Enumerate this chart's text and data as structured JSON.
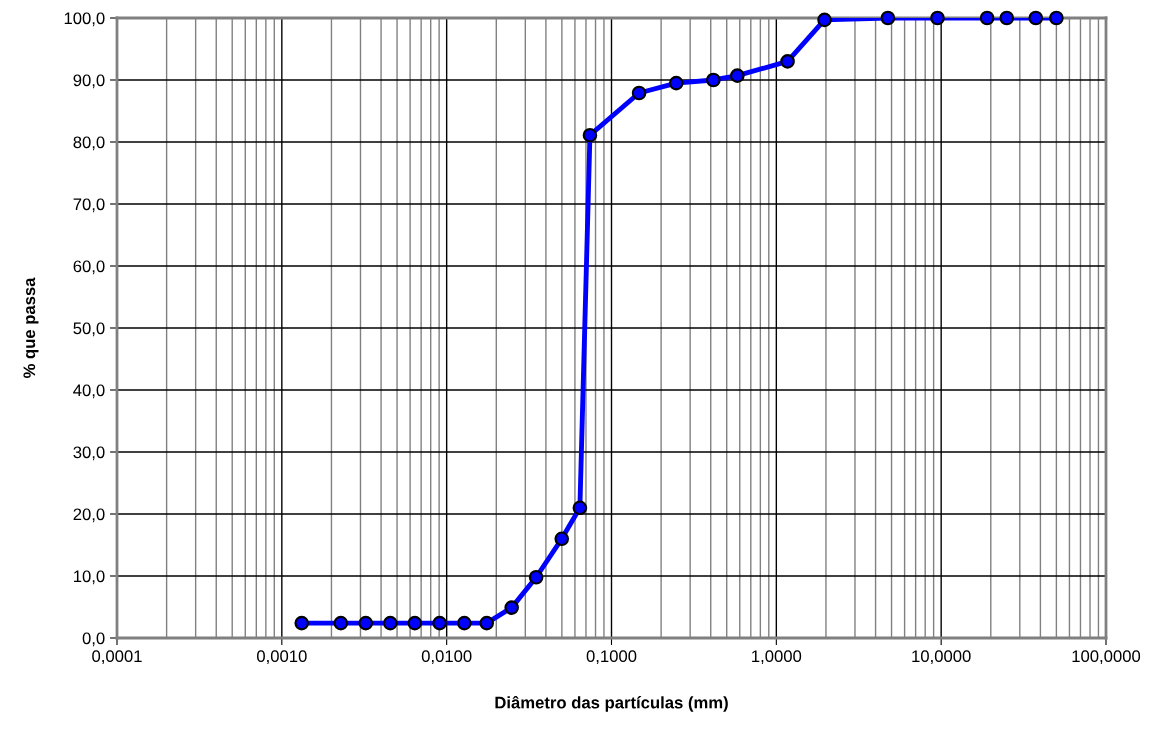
{
  "chart_data": {
    "type": "line",
    "xlabel": "Diâmetro das partículas (mm)",
    "ylabel": "% que passa",
    "log": "x",
    "grid": true,
    "marker": "circle",
    "line_style": "solid",
    "legend": false,
    "series": [
      {
        "color": "#0000ff",
        "x": [
          0.00132,
          0.00228,
          0.00323,
          0.00455,
          0.00641,
          0.00907,
          0.0128,
          0.0175,
          0.0248,
          0.0349,
          0.0499,
          0.0643,
          0.074,
          0.147,
          0.247,
          0.415,
          0.58,
          1.17,
          1.96,
          4.75,
          9.5,
          19,
          25,
          37.5,
          50
        ],
        "values": [
          2.4,
          2.4,
          2.4,
          2.4,
          2.4,
          2.4,
          2.4,
          2.4,
          4.9,
          9.8,
          16.0,
          21.0,
          81.1,
          87.9,
          89.5,
          90.0,
          90.7,
          93.0,
          99.7,
          100,
          100,
          100,
          100,
          100,
          100
        ]
      }
    ],
    "xlim": [
      0.0001,
      100
    ],
    "xticks": [
      {
        "value": 0.0001,
        "label": "0,0001"
      },
      {
        "value": 0.0002,
        "label": null
      },
      {
        "value": 0.0003,
        "label": null
      },
      {
        "value": 0.0004,
        "label": null
      },
      {
        "value": 0.0005,
        "label": null
      },
      {
        "value": 0.0006,
        "label": null
      },
      {
        "value": 0.0007,
        "label": null
      },
      {
        "value": 0.0008,
        "label": null
      },
      {
        "value": 0.0009,
        "label": null
      },
      {
        "value": 0.001,
        "label": "0,0010"
      },
      {
        "value": 0.002,
        "label": null
      },
      {
        "value": 0.003,
        "label": null
      },
      {
        "value": 0.004,
        "label": null
      },
      {
        "value": 0.005,
        "label": null
      },
      {
        "value": 0.006,
        "label": null
      },
      {
        "value": 0.007,
        "label": null
      },
      {
        "value": 0.008,
        "label": null
      },
      {
        "value": 0.009,
        "label": null
      },
      {
        "value": 0.01,
        "label": "0,0100"
      },
      {
        "value": 0.02,
        "label": null
      },
      {
        "value": 0.03,
        "label": null
      },
      {
        "value": 0.04,
        "label": null
      },
      {
        "value": 0.05,
        "label": null
      },
      {
        "value": 0.06,
        "label": null
      },
      {
        "value": 0.07,
        "label": null
      },
      {
        "value": 0.08,
        "label": null
      },
      {
        "value": 0.09,
        "label": null
      },
      {
        "value": 0.1,
        "label": "0,1000"
      },
      {
        "value": 0.2,
        "label": null
      },
      {
        "value": 0.3,
        "label": null
      },
      {
        "value": 0.4,
        "label": null
      },
      {
        "value": 0.5,
        "label": null
      },
      {
        "value": 0.6,
        "label": null
      },
      {
        "value": 0.7,
        "label": null
      },
      {
        "value": 0.8,
        "label": null
      },
      {
        "value": 0.9,
        "label": null
      },
      {
        "value": 1,
        "label": "1,0000"
      },
      {
        "value": 2,
        "label": null
      },
      {
        "value": 3,
        "label": null
      },
      {
        "value": 4,
        "label": null
      },
      {
        "value": 5,
        "label": null
      },
      {
        "value": 6,
        "label": null
      },
      {
        "value": 7,
        "label": null
      },
      {
        "value": 8,
        "label": null
      },
      {
        "value": 9,
        "label": null
      },
      {
        "value": 10,
        "label": "10,0000"
      },
      {
        "value": 20,
        "label": null
      },
      {
        "value": 30,
        "label": null
      },
      {
        "value": 40,
        "label": null
      },
      {
        "value": 50,
        "label": null
      },
      {
        "value": 60,
        "label": null
      },
      {
        "value": 70,
        "label": null
      },
      {
        "value": 80,
        "label": null
      },
      {
        "value": 90,
        "label": null
      },
      {
        "value": 100,
        "label": "100,0000"
      }
    ],
    "ylim": [
      0,
      100
    ],
    "yticks": [
      {
        "value": 0,
        "label": "0,0"
      },
      {
        "value": 10,
        "label": "10,0"
      },
      {
        "value": 20,
        "label": "20,0"
      },
      {
        "value": 30,
        "label": "30,0"
      },
      {
        "value": 40,
        "label": "40,0"
      },
      {
        "value": 50,
        "label": "50,0"
      },
      {
        "value": 60,
        "label": "60,0"
      },
      {
        "value": 70,
        "label": "70,0"
      },
      {
        "value": 80,
        "label": "80,0"
      },
      {
        "value": 90,
        "label": "90,0"
      },
      {
        "value": 100,
        "label": "100,0"
      }
    ]
  }
}
